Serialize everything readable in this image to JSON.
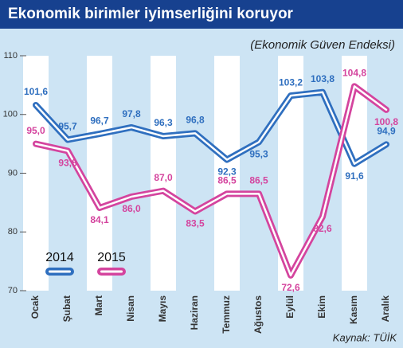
{
  "chart_data": {
    "type": "line",
    "title": "Ekonomik birimler iyimserliğini koruyor",
    "subtitle": "(Ekonomik Güven Endeksi)",
    "source": "Kaynak: TÜİK",
    "categories": [
      "Ocak",
      "Şubat",
      "Mart",
      "Nisan",
      "Mayıs",
      "Haziran",
      "Temmuz",
      "Ağustos",
      "Eylül",
      "Ekim",
      "Kasım",
      "Aralık"
    ],
    "series": [
      {
        "name": "2014",
        "color": "#2f6fbf",
        "values": [
          101.6,
          95.7,
          96.7,
          97.8,
          96.3,
          96.8,
          92.3,
          95.3,
          103.2,
          103.8,
          91.6,
          94.9
        ],
        "value_labels": [
          "101,6",
          "95,7",
          "96,7",
          "97,8",
          "96,3",
          "96,8",
          "92,3",
          "95,3",
          "103,2",
          "103,8",
          "91,6",
          "94,9"
        ]
      },
      {
        "name": "2015",
        "color": "#d4449e",
        "values": [
          95.0,
          93.8,
          84.1,
          86.0,
          87.0,
          83.5,
          86.5,
          86.5,
          72.6,
          82.6,
          104.8,
          100.8
        ],
        "value_labels": [
          "95,0",
          "93,8",
          "84,1",
          "86,0",
          "87,0",
          "83,5",
          "86,5",
          "86,5",
          "72,6",
          "82,6",
          "104,8",
          "100,8"
        ]
      }
    ],
    "ylim": [
      70,
      110
    ],
    "yticks": [
      70,
      80,
      90,
      100,
      110
    ],
    "legend": "lower left"
  }
}
